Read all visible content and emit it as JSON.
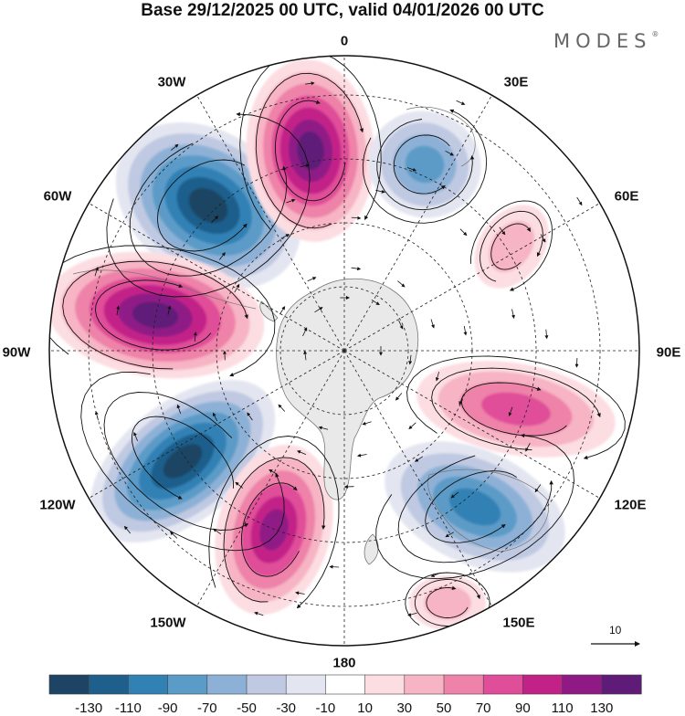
{
  "title": "Base 29/12/2025 00 UTC, valid 04/01/2026 00 UTC",
  "brand": "MODES",
  "brand_mark": "®",
  "longitude_labels": {
    "lon_0": "0",
    "lon_30e": "30E",
    "lon_60e": "60E",
    "lon_90e": "90E",
    "lon_120e": "120E",
    "lon_150e": "150E",
    "lon_180": "180",
    "lon_150w": "150W",
    "lon_120w": "120W",
    "lon_90w": "90W",
    "lon_60w": "60W",
    "lon_30w": "30W"
  },
  "reference_vector": {
    "label": "10"
  },
  "colorbar": {
    "labels": [
      "-130",
      "-110",
      "-90",
      "-70",
      "-50",
      "-30",
      "-10",
      "10",
      "30",
      "50",
      "70",
      "90",
      "110",
      "130"
    ],
    "colors": [
      "#1d4464",
      "#1f5f8c",
      "#3281b5",
      "#5b9bc7",
      "#8db1d6",
      "#bfc9e2",
      "#e3e5f0",
      "#ffffff",
      "#fcdde2",
      "#f6b4c4",
      "#ee82a9",
      "#e04d98",
      "#c22188",
      "#8f1a86",
      "#5e1b78"
    ]
  },
  "colors": {
    "land": "#e9e9e9",
    "coast": "#777777",
    "grid": "#222222",
    "vector": "#111111"
  }
}
